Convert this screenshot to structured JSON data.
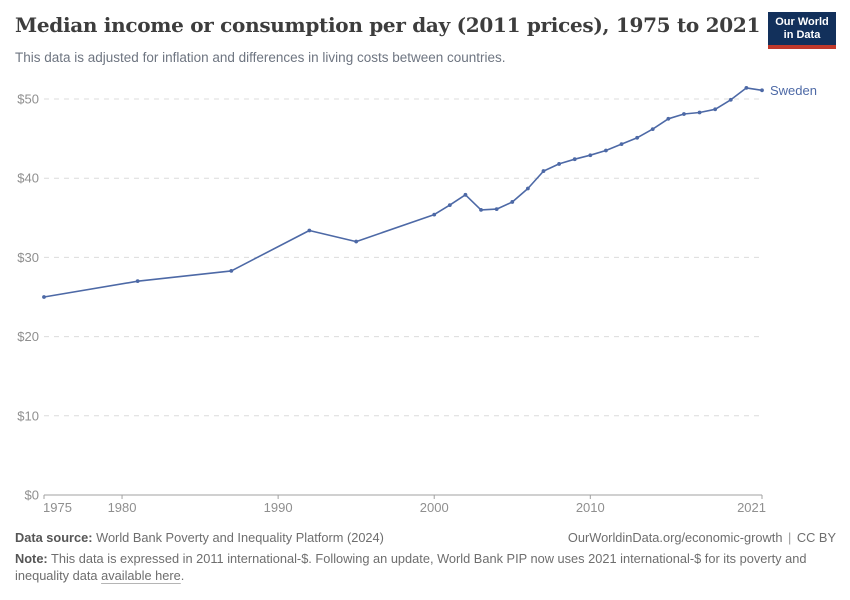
{
  "header": {
    "title": "Median income or consumption per day (2011 prices), 1975 to 2021",
    "subtitle": "This data is adjusted for inflation and differences in living costs between countries.",
    "logo": {
      "line1": "Our World",
      "line2": "in Data"
    }
  },
  "chart_data": {
    "type": "line",
    "title": "Median income or consumption per day (2011 prices), 1975 to 2021",
    "xlabel": "",
    "ylabel": "",
    "xlim": [
      1975,
      2021
    ],
    "ylim": [
      0,
      50
    ],
    "grid": "horizontal-dashed",
    "legend_position": "end-of-line-label",
    "line_color": "#4d69a6",
    "axis_color": "#a0a0a0",
    "grid_color": "#dcdcdc",
    "tick_label_color": "#8f8f8f",
    "yticks": [
      {
        "value": 0,
        "label": "$0"
      },
      {
        "value": 10,
        "label": "$10"
      },
      {
        "value": 20,
        "label": "$20"
      },
      {
        "value": 30,
        "label": "$30"
      },
      {
        "value": 40,
        "label": "$40"
      },
      {
        "value": 50,
        "label": "$50"
      }
    ],
    "xticks": [
      {
        "value": 1975,
        "label": "1975"
      },
      {
        "value": 1980,
        "label": "1980"
      },
      {
        "value": 1990,
        "label": "1990"
      },
      {
        "value": 2000,
        "label": "2000"
      },
      {
        "value": 2010,
        "label": "2010"
      },
      {
        "value": 2021,
        "label": "2021"
      }
    ],
    "series": [
      {
        "name": "Sweden",
        "color": "#4d69a6",
        "points": [
          [
            1975,
            25.0
          ],
          [
            1981,
            27.0
          ],
          [
            1987,
            28.3
          ],
          [
            1992,
            33.4
          ],
          [
            1995,
            32.0
          ],
          [
            2000,
            35.4
          ],
          [
            2001,
            36.6
          ],
          [
            2002,
            37.9
          ],
          [
            2003,
            36.0
          ],
          [
            2004,
            36.1
          ],
          [
            2005,
            37.0
          ],
          [
            2006,
            38.7
          ],
          [
            2007,
            40.9
          ],
          [
            2008,
            41.8
          ],
          [
            2009,
            42.4
          ],
          [
            2010,
            42.9
          ],
          [
            2011,
            43.5
          ],
          [
            2012,
            44.3
          ],
          [
            2013,
            45.1
          ],
          [
            2014,
            46.2
          ],
          [
            2015,
            47.5
          ],
          [
            2016,
            48.1
          ],
          [
            2017,
            48.3
          ],
          [
            2018,
            48.7
          ],
          [
            2019,
            49.9
          ],
          [
            2020,
            51.4
          ],
          [
            2021,
            51.1
          ]
        ]
      }
    ]
  },
  "footer": {
    "source_label": "Data source:",
    "source_text": "World Bank Poverty and Inequality Platform (2024)",
    "site_text": "OurWorldinData.org/economic-growth",
    "license_text": "CC BY",
    "note_label": "Note:",
    "note_text": "This data is expressed in 2011 international-$. Following an update, World Bank PIP now uses 2021 international-$ for its poverty and inequality data",
    "note_link": "available here",
    "note_suffix": "."
  }
}
